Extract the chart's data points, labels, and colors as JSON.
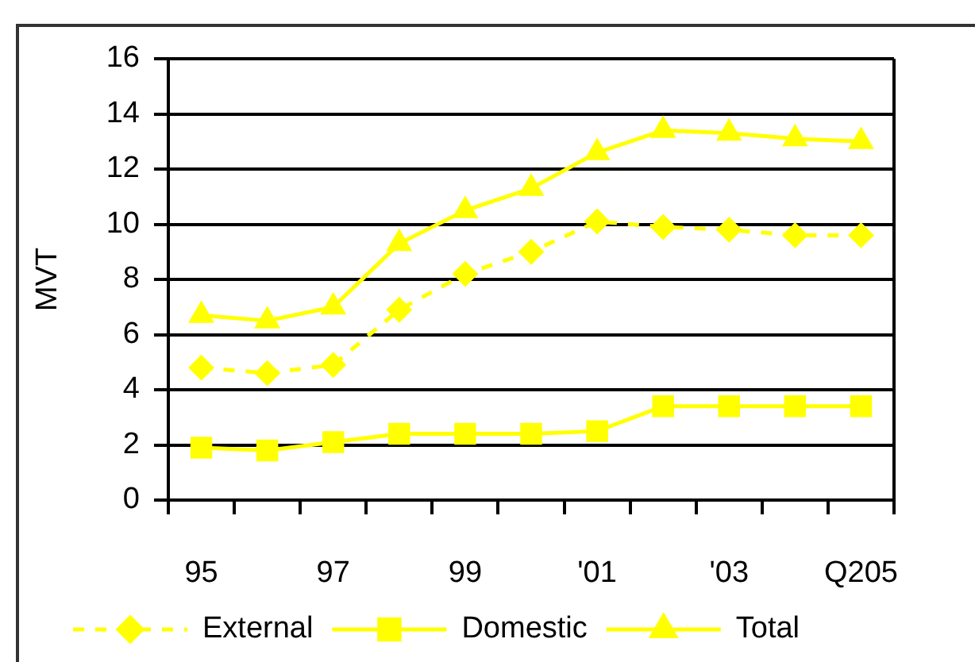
{
  "chart_data": {
    "type": "line",
    "ylabel": "MVT",
    "categories": [
      "95",
      null,
      "97",
      null,
      "99",
      null,
      "'01",
      null,
      "'03",
      null,
      "Q205"
    ],
    "series": [
      {
        "name": "External",
        "color": "#ffff00",
        "marker": "diamond",
        "line_style": "dashed",
        "values": [
          4.8,
          4.6,
          4.9,
          6.9,
          8.2,
          9.0,
          10.1,
          9.9,
          9.8,
          9.6,
          9.6
        ]
      },
      {
        "name": "Domestic",
        "color": "#ffff00",
        "marker": "square",
        "line_style": "solid",
        "values": [
          1.9,
          1.8,
          2.1,
          2.4,
          2.4,
          2.4,
          2.5,
          3.4,
          3.4,
          3.4,
          3.4
        ]
      },
      {
        "name": "Total",
        "color": "#ffff00",
        "marker": "triangle",
        "line_style": "solid",
        "values": [
          6.7,
          6.5,
          7.0,
          9.3,
          10.5,
          11.3,
          12.6,
          13.4,
          13.3,
          13.1,
          13.0
        ]
      }
    ],
    "ylim": [
      0,
      16
    ],
    "yticks": [
      0,
      2,
      4,
      6,
      8,
      10,
      12,
      14,
      16
    ],
    "grid": "y",
    "legend": "bottom"
  }
}
